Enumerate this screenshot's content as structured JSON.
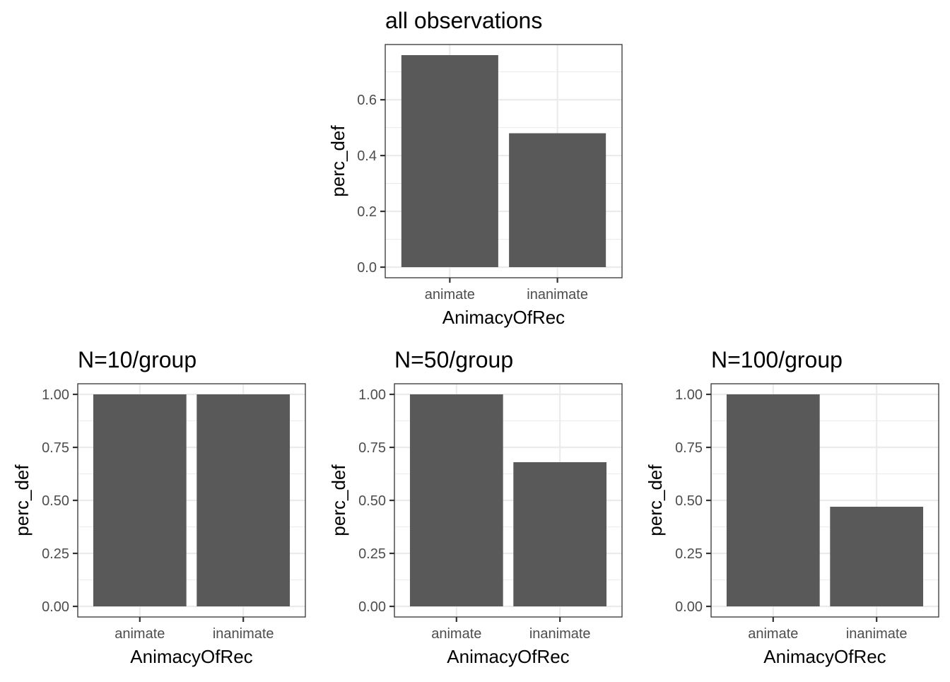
{
  "chart_data": [
    {
      "type": "bar",
      "title": "all observations",
      "xlabel": "AnimacyOfRec",
      "ylabel": "perc_def",
      "categories": [
        "animate",
        "inanimate"
      ],
      "values": [
        0.76,
        0.48
      ],
      "ylim": [
        -0.038,
        0.798
      ],
      "yticks": [
        0.0,
        0.2,
        0.4,
        0.6
      ],
      "ytick_labels": [
        "0.0",
        "0.2",
        "0.4",
        "0.6"
      ],
      "grid": true,
      "bar_color": "#595959"
    },
    {
      "type": "bar",
      "title": "N=10/group",
      "xlabel": "AnimacyOfRec",
      "ylabel": "perc_def",
      "categories": [
        "animate",
        "inanimate"
      ],
      "values": [
        1.0,
        1.0
      ],
      "ylim": [
        -0.05,
        1.05
      ],
      "yticks": [
        0.0,
        0.25,
        0.5,
        0.75,
        1.0
      ],
      "ytick_labels": [
        "0.00",
        "0.25",
        "0.50",
        "0.75",
        "1.00"
      ],
      "grid": true,
      "bar_color": "#595959"
    },
    {
      "type": "bar",
      "title": "N=50/group",
      "xlabel": "AnimacyOfRec",
      "ylabel": "perc_def",
      "categories": [
        "animate",
        "inanimate"
      ],
      "values": [
        1.0,
        0.68
      ],
      "ylim": [
        -0.05,
        1.05
      ],
      "yticks": [
        0.0,
        0.25,
        0.5,
        0.75,
        1.0
      ],
      "ytick_labels": [
        "0.00",
        "0.25",
        "0.50",
        "0.75",
        "1.00"
      ],
      "grid": true,
      "bar_color": "#595959"
    },
    {
      "type": "bar",
      "title": "N=100/group",
      "xlabel": "AnimacyOfRec",
      "ylabel": "perc_def",
      "categories": [
        "animate",
        "inanimate"
      ],
      "values": [
        1.0,
        0.47
      ],
      "ylim": [
        -0.05,
        1.05
      ],
      "yticks": [
        0.0,
        0.25,
        0.5,
        0.75,
        1.0
      ],
      "ytick_labels": [
        "0.00",
        "0.25",
        "0.50",
        "0.75",
        "1.00"
      ],
      "grid": true,
      "bar_color": "#595959"
    }
  ]
}
